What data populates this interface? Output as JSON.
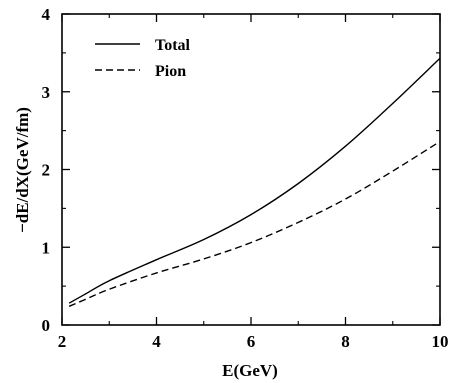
{
  "chart_data": {
    "type": "line",
    "xlabel": "E(GeV)",
    "ylabel": "−dE/dX(GeV/fm)",
    "xlim": [
      2,
      10
    ],
    "ylim": [
      0,
      4
    ],
    "xticks": [
      2,
      4,
      6,
      8,
      10
    ],
    "yticks": [
      0,
      1,
      2,
      3,
      4
    ],
    "grid": false,
    "legend_position": "top-left",
    "series": [
      {
        "name": "Total",
        "style": "solid",
        "x": [
          2.15,
          2.5,
          3,
          4,
          5,
          6,
          7,
          8,
          9,
          10
        ],
        "y": [
          0.28,
          0.4,
          0.57,
          0.84,
          1.1,
          1.42,
          1.82,
          2.3,
          2.85,
          3.43
        ]
      },
      {
        "name": "Pion",
        "style": "dashed",
        "x": [
          2.15,
          2.5,
          3,
          4,
          5,
          6,
          7,
          8,
          9,
          10
        ],
        "y": [
          0.24,
          0.33,
          0.46,
          0.67,
          0.85,
          1.06,
          1.32,
          1.62,
          1.98,
          2.36
        ]
      }
    ]
  }
}
